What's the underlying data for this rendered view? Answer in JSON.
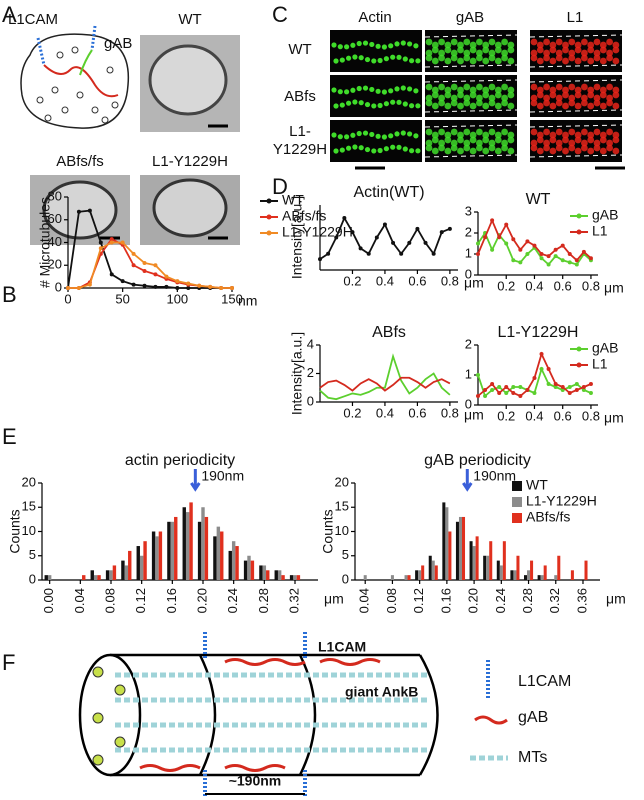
{
  "panel_labels": [
    "A",
    "B",
    "C",
    "D",
    "E",
    "F"
  ],
  "panel_a": {
    "schematic_labels": [
      "L1CAM",
      "gAB"
    ],
    "images": [
      "WT",
      "ABfs/fs",
      "L1-Y1229H"
    ]
  },
  "panel_c": {
    "columns": [
      "Actin",
      "gAB",
      "L1"
    ],
    "rows": [
      [
        "WT"
      ],
      [
        "ABfs"
      ],
      [
        "L1-",
        "Y1229H"
      ]
    ]
  },
  "panel_f": {
    "labels": [
      "L1CAM",
      "giant AnkB"
    ],
    "spacing": "~190nm",
    "legend": [
      "L1CAM",
      "gAB",
      "MTs"
    ]
  },
  "chart_data": [
    {
      "type": "line",
      "ylabel": "# Microtubules",
      "x_unit": "nm",
      "legend": true,
      "markers": true,
      "x": [
        0,
        10,
        20,
        30,
        40,
        50,
        60,
        70,
        80,
        90,
        100,
        110,
        120,
        130,
        140,
        150
      ],
      "series": [
        {
          "name": "WT",
          "color": "#111111",
          "values": [
            0,
            67,
            68,
            40,
            12,
            6,
            3,
            2,
            1,
            1,
            0,
            0,
            0,
            0,
            0,
            0
          ]
        },
        {
          "name": "ABfs/fs",
          "color": "#e0301e",
          "values": [
            0,
            0,
            5,
            30,
            43,
            38,
            20,
            15,
            12,
            8,
            5,
            3,
            2,
            1,
            0,
            0
          ]
        },
        {
          "name": "L1-Y1229H",
          "color": "#f08a24",
          "values": [
            0,
            0,
            3,
            35,
            40,
            40,
            30,
            22,
            20,
            10,
            6,
            4,
            2,
            1,
            0,
            0
          ]
        }
      ],
      "xlim": [
        0,
        150
      ],
      "xticks": [
        0,
        50,
        100,
        150
      ],
      "ylim": [
        0,
        80
      ],
      "yticks": [
        0,
        20,
        40,
        60,
        80
      ]
    },
    {
      "type": "line",
      "title": "Actin(WT)",
      "ylabel": "Intensity[a.u.]",
      "x_unit": "μm",
      "legend": false,
      "markers": true,
      "x": [
        0,
        0.05,
        0.1,
        0.15,
        0.2,
        0.25,
        0.3,
        0.35,
        0.4,
        0.45,
        0.5,
        0.55,
        0.6,
        0.65,
        0.7,
        0.75,
        0.8
      ],
      "series": [
        {
          "name": "Actin",
          "color": "#111111",
          "values": [
            2,
            2.5,
            4,
            5.8,
            4.5,
            3,
            2.5,
            4,
            5.2,
            3.5,
            2.5,
            3.5,
            4.8,
            3.5,
            2.5,
            4.5,
            4.8
          ]
        }
      ],
      "xlim": [
        0,
        0.85
      ],
      "xticks": [
        0.2,
        0.4,
        0.6,
        0.8
      ],
      "ylim": [
        1,
        7
      ],
      "yticks": []
    },
    {
      "type": "line",
      "title": "WT",
      "x_unit": "μm",
      "legend": true,
      "markers": true,
      "x": [
        0,
        0.05,
        0.1,
        0.15,
        0.2,
        0.25,
        0.3,
        0.35,
        0.4,
        0.45,
        0.5,
        0.55,
        0.6,
        0.65,
        0.7,
        0.75,
        0.8
      ],
      "series": [
        {
          "name": "gAB",
          "color": "#5ccf2e",
          "values": [
            1.5,
            2,
            1.2,
            1.9,
            1.5,
            0.7,
            0.6,
            1.0,
            1.3,
            0.8,
            0.5,
            0.9,
            0.7,
            0.6,
            0.5,
            1.0,
            0.7
          ]
        },
        {
          "name": "L1",
          "color": "#d42a1e",
          "values": [
            1.0,
            1.8,
            2.6,
            1.8,
            2.4,
            1.7,
            1.2,
            1.6,
            1.4,
            1.0,
            0.9,
            1.2,
            1.4,
            1.0,
            0.7,
            1.1,
            0.8
          ]
        }
      ],
      "xlim": [
        0,
        0.85
      ],
      "xticks": [
        0.2,
        0.4,
        0.6,
        0.8
      ],
      "ylim": [
        0,
        3
      ],
      "yticks": [
        0,
        1,
        2,
        3
      ]
    },
    {
      "type": "line",
      "title": "ABfs",
      "ylabel": "Intensity[a.u.]",
      "x_unit": "μm",
      "legend": false,
      "markers": false,
      "x": [
        0,
        0.05,
        0.1,
        0.15,
        0.2,
        0.25,
        0.3,
        0.35,
        0.4,
        0.45,
        0.5,
        0.55,
        0.6,
        0.65,
        0.7,
        0.75,
        0.8
      ],
      "series": [
        {
          "name": "gAB",
          "color": "#5ccf2e",
          "values": [
            0.8,
            0.3,
            0.2,
            0.4,
            0.6,
            0.5,
            0.7,
            1.0,
            1.0,
            3.2,
            1.5,
            0.6,
            1.0,
            1.6,
            2.0,
            1.0,
            0.5
          ]
        },
        {
          "name": "L1",
          "color": "#d42a1e",
          "values": [
            1.0,
            1.4,
            1.5,
            1.2,
            0.8,
            1.3,
            1.6,
            1.3,
            0.8,
            1.2,
            1.7,
            1.7,
            1.4,
            1.0,
            1.4,
            1.6,
            1.3
          ]
        }
      ],
      "xlim": [
        0,
        0.85
      ],
      "xticks": [
        0.2,
        0.4,
        0.6,
        0.8
      ],
      "ylim": [
        0,
        4
      ],
      "yticks": [
        0,
        2,
        4
      ]
    },
    {
      "type": "line",
      "title": "L1-Y1229H",
      "x_unit": "μm",
      "legend": true,
      "markers": true,
      "x": [
        0,
        0.05,
        0.1,
        0.15,
        0.2,
        0.25,
        0.3,
        0.35,
        0.4,
        0.45,
        0.5,
        0.55,
        0.6,
        0.65,
        0.7,
        0.75,
        0.8
      ],
      "series": [
        {
          "name": "gAB",
          "color": "#5ccf2e",
          "values": [
            1.0,
            0.3,
            0.5,
            0.6,
            0.4,
            0.6,
            0.6,
            0.5,
            0.4,
            1.2,
            0.7,
            0.6,
            0.5,
            0.6,
            0.7,
            0.5,
            0.4
          ]
        },
        {
          "name": "L1",
          "color": "#d42a1e",
          "values": [
            0.3,
            0.5,
            0.7,
            0.4,
            0.6,
            0.4,
            0.3,
            0.5,
            0.9,
            1.7,
            1.2,
            0.7,
            0.6,
            0.4,
            0.5,
            0.6,
            0.7
          ]
        }
      ],
      "xlim": [
        0,
        0.85
      ],
      "xticks": [
        0.2,
        0.4,
        0.6,
        0.8
      ],
      "ylim": [
        0,
        2
      ],
      "yticks": [
        0,
        1,
        2
      ]
    },
    {
      "type": "bar",
      "title": "actin periodicity",
      "ylabel": "Counts",
      "x_unit": "μm",
      "legend": false,
      "annotation": {
        "value": 0.19,
        "label": "190nm"
      },
      "x": [
        0,
        0.02,
        0.04,
        0.06,
        0.08,
        0.1,
        0.12,
        0.14,
        0.16,
        0.18,
        0.2,
        0.22,
        0.24,
        0.26,
        0.28,
        0.3,
        0.32,
        0.34
      ],
      "series": [
        {
          "name": "WT",
          "color": "#111111",
          "values": [
            1,
            0,
            0,
            2,
            2,
            4,
            7,
            10,
            12,
            15,
            12,
            9,
            6,
            4,
            3,
            2,
            1,
            0
          ]
        },
        {
          "name": "L1-Y1229H",
          "color": "#8c8c8c",
          "values": [
            1,
            0,
            0,
            1,
            2,
            3,
            5,
            9,
            12,
            14,
            15,
            11,
            8,
            5,
            3,
            2,
            1,
            0
          ]
        },
        {
          "name": "ABfs/fs",
          "color": "#e0301e",
          "values": [
            0,
            0,
            1,
            1,
            3,
            6,
            8,
            10,
            13,
            16,
            13,
            10,
            7,
            4,
            2,
            1,
            1,
            0
          ]
        }
      ],
      "xlim": [
        -0.01,
        0.35
      ],
      "xticks": [
        {
          "value": 0,
          "label": "0.00"
        },
        0.04,
        0.08,
        0.12,
        0.16,
        {
          "value": 0.2,
          "label": "0.20"
        },
        0.24,
        0.28,
        0.32
      ],
      "ylim": [
        0,
        20
      ],
      "yticks": [
        0,
        5,
        10,
        15,
        20
      ]
    },
    {
      "type": "bar",
      "title": "gAB periodicity",
      "ylabel": "Counts",
      "x_unit": "μm",
      "legend": true,
      "annotation": {
        "value": 0.19,
        "label": "190nm"
      },
      "x": [
        0.04,
        0.06,
        0.08,
        0.1,
        0.12,
        0.14,
        0.16,
        0.18,
        0.2,
        0.22,
        0.24,
        0.26,
        0.28,
        0.3,
        0.32,
        0.34,
        0.36,
        0.38
      ],
      "series": [
        {
          "name": "WT",
          "color": "#111111",
          "values": [
            0,
            0,
            0,
            0,
            2,
            5,
            16,
            12,
            8,
            5,
            4,
            2,
            1,
            1,
            0,
            0,
            0,
            0
          ]
        },
        {
          "name": "L1-Y1229H",
          "color": "#8c8c8c",
          "values": [
            1,
            0,
            1,
            1,
            2,
            4,
            15,
            13,
            7,
            5,
            3,
            2,
            2,
            1,
            1,
            0,
            0,
            0
          ]
        },
        {
          "name": "ABfs/fs",
          "color": "#e0301e",
          "values": [
            0,
            0,
            0,
            1,
            3,
            3,
            10,
            13,
            9,
            8,
            8,
            5,
            4,
            3,
            5,
            2,
            4,
            0
          ]
        }
      ],
      "xlim": [
        0.025,
        0.385
      ],
      "xticks": [
        0.04,
        0.08,
        0.12,
        0.16,
        {
          "value": 0.2,
          "label": "0.20"
        },
        0.24,
        0.28,
        0.32,
        0.36
      ],
      "ylim": [
        0,
        20
      ],
      "yticks": [
        0,
        5,
        10,
        15,
        20
      ]
    }
  ]
}
